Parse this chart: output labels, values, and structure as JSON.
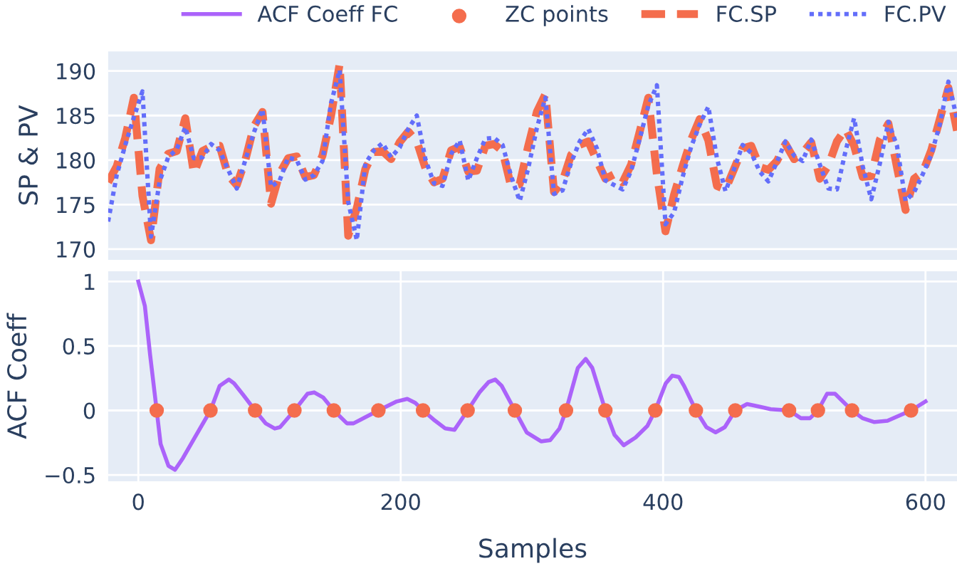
{
  "chart_data": [
    {
      "type": "line",
      "ylabel": "SP & PV",
      "categories": [
        null,
        null,
        null,
        null,
        null,
        null,
        null,
        null,
        null,
        null,
        null,
        null,
        null,
        null,
        null,
        null,
        null,
        null,
        null,
        null,
        null,
        null,
        null,
        null,
        null,
        null,
        null,
        null,
        null,
        null,
        null,
        null,
        null,
        null,
        null,
        null,
        null,
        null,
        null,
        null,
        null,
        null,
        null,
        null,
        null,
        null,
        null,
        null,
        null,
        null,
        null,
        null,
        null,
        null,
        null,
        null,
        null,
        null,
        null,
        null,
        null,
        null,
        null,
        null,
        null,
        null,
        null,
        null,
        null,
        null,
        null,
        null,
        null,
        null,
        null,
        null,
        null,
        null,
        null,
        null,
        null,
        null,
        null,
        null,
        null,
        null,
        null,
        null,
        null,
        null,
        null,
        null,
        null,
        null,
        null,
        null,
        null,
        null,
        null,
        null
      ],
      "ylim": [
        168.8,
        192.2
      ],
      "yticks": [
        170,
        175,
        180,
        185,
        190
      ],
      "grid": "y",
      "legend": "top",
      "tick_labels": "y",
      "series": [
        {
          "name": "FC.SP",
          "color": "#f46d4d",
          "line_style": "dashed",
          "values": [
            177.5,
            179.3,
            182.5,
            187,
            176,
            171,
            179,
            180.7,
            181,
            184.7,
            178.5,
            181,
            181.5,
            181.6,
            178.3,
            177.2,
            180,
            183.8,
            185.4,
            175.1,
            178.5,
            180.2,
            180.4,
            178.1,
            178.3,
            180.5,
            185,
            190.8,
            171.5,
            174.6,
            179,
            180.9,
            181,
            180.1,
            182,
            183.2,
            182.1,
            179.1,
            177.5,
            177.9,
            181.1,
            181.5,
            178.7,
            178.8,
            181.6,
            181.8,
            181,
            177,
            177.3,
            181.6,
            185.4,
            187.4,
            176.4,
            177.6,
            180.6,
            181.7,
            182.1,
            179.9,
            177.9,
            178.4,
            177.5,
            179.5,
            183.2,
            187,
            178.4,
            172,
            176.1,
            179.3,
            182.3,
            184.6,
            182.2,
            177.1,
            176.7,
            179,
            181.3,
            181.6,
            179.2,
            178.9,
            179.9,
            181.8,
            180.1,
            180.8,
            182,
            177.9,
            179.4,
            182.1,
            183.5,
            181.6,
            178.1,
            178.2,
            182.3,
            184.1,
            179.2,
            174.4,
            177.9,
            178.6,
            181.1,
            184.6,
            188.1,
            183.3
          ]
        },
        {
          "name": "FC.PV",
          "color": "#636efa",
          "line_style": "dotted",
          "values": [
            173.1,
            178.3,
            181.7,
            184.8,
            187.7,
            171.4,
            177.6,
            180.3,
            181.2,
            183.7,
            180.2,
            180.3,
            181.8,
            181.1,
            178.9,
            176.8,
            180,
            183.1,
            185.7,
            177,
            177.7,
            180.3,
            180,
            177.8,
            178.3,
            179.9,
            186.4,
            190.1,
            175.3,
            171,
            179.6,
            181.1,
            181.9,
            180.3,
            181.4,
            183.5,
            185,
            180.1,
            177.4,
            177.1,
            180.7,
            182.2,
            177.7,
            180.2,
            182.4,
            182.5,
            181.7,
            178.2,
            175.4,
            179.1,
            183.6,
            187,
            176.2,
            176.6,
            179.7,
            182.1,
            183.5,
            181.3,
            177.7,
            177.2,
            176.7,
            178.8,
            182.4,
            186.1,
            188.4,
            172.8,
            174.1,
            178.1,
            181.5,
            184,
            186,
            180.2,
            176.5,
            179,
            181.7,
            180.8,
            178.7,
            177.6,
            179.8,
            182.1,
            180.5,
            179.9,
            182.3,
            179.5,
            176.8,
            176.7,
            181,
            184.7,
            179.3,
            175.6,
            179.6,
            184.3,
            181.6,
            175.4,
            176.4,
            178.4,
            180.6,
            184,
            188.8,
            184.6
          ]
        }
      ]
    },
    {
      "type": "line",
      "xlabel": "Samples",
      "ylabel": "ACF Coeff",
      "xlim": [
        -23,
        624
      ],
      "xticks": [
        0,
        200,
        400,
        600
      ],
      "ylim": [
        -0.55,
        1.08
      ],
      "yticks": [
        {
          "value": -0.5,
          "label": "−0.5"
        },
        0,
        0.5,
        1
      ],
      "grid": true,
      "legend": "top",
      "series": [
        {
          "name": "ACF Coeff FC",
          "color": "#ab63fa",
          "marker": "none",
          "x": [
            0,
            5,
            9,
            14,
            17,
            23,
            28,
            34,
            43,
            55,
            62,
            69,
            73,
            80,
            89,
            97,
            104,
            108,
            119,
            129,
            134,
            141,
            149,
            159,
            164,
            183,
            197,
            205,
            211,
            217,
            225,
            234,
            241,
            251,
            260,
            267,
            272,
            277,
            287,
            296,
            307,
            314,
            321,
            326,
            335,
            341,
            346,
            356,
            363,
            370,
            379,
            388,
            394,
            402,
            407,
            412,
            416,
            425,
            433,
            440,
            447,
            455,
            464,
            473,
            482,
            496,
            505,
            512,
            518,
            525,
            531,
            544,
            552,
            561,
            571,
            589,
            600
          ],
          "values": [
            1,
            0.81,
            0.43,
            0,
            -0.26,
            -0.43,
            -0.46,
            -0.37,
            -0.21,
            0,
            0.19,
            0.24,
            0.21,
            0.12,
            0,
            -0.1,
            -0.14,
            -0.13,
            0,
            0.13,
            0.14,
            0.1,
            0,
            -0.1,
            -0.1,
            0,
            0.07,
            0.09,
            0.06,
            0,
            -0.07,
            -0.14,
            -0.15,
            0,
            0.14,
            0.22,
            0.24,
            0.19,
            0,
            -0.17,
            -0.24,
            -0.23,
            -0.14,
            0,
            0.33,
            0.4,
            0.33,
            0,
            -0.19,
            -0.27,
            -0.21,
            -0.12,
            0,
            0.21,
            0.27,
            0.26,
            0.19,
            0,
            -0.13,
            -0.17,
            -0.13,
            0,
            0.05,
            0.03,
            0.01,
            0,
            -0.06,
            -0.06,
            0,
            0.13,
            0.13,
            0,
            -0.06,
            -0.09,
            -0.08,
            0,
            0.07
          ]
        },
        {
          "name": "ZC points",
          "type": "scatter",
          "color": "#f46d4d",
          "marker": "circle",
          "x": [
            14,
            55,
            89,
            119,
            149,
            183,
            217,
            251,
            287,
            326,
            356,
            394,
            425,
            455,
            496,
            518,
            544,
            589
          ],
          "values": [
            0,
            0,
            0,
            0,
            0,
            0,
            0,
            0,
            0,
            0,
            0,
            0,
            0,
            0,
            0,
            0,
            0,
            0
          ]
        }
      ]
    }
  ]
}
